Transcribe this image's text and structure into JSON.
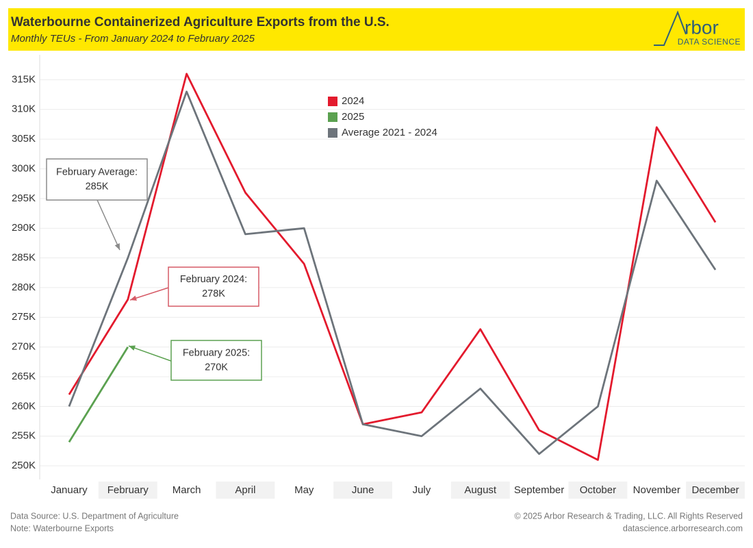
{
  "chart_data": {
    "type": "line",
    "title": "Waterbourne Containerized Agriculture Exports from the U.S.",
    "subtitle": "Monthly TEUs - From January 2024 to February 2025",
    "brand": {
      "name": "rbor",
      "tagline": "DATA SCIENCE"
    },
    "categories": [
      "January",
      "February",
      "March",
      "April",
      "May",
      "June",
      "July",
      "August",
      "September",
      "October",
      "November",
      "December"
    ],
    "series": [
      {
        "name": "2024",
        "color": "#e31a2d",
        "values": [
          262000,
          278000,
          316000,
          296000,
          284000,
          257000,
          259000,
          273000,
          256000,
          251000,
          307000,
          291000
        ]
      },
      {
        "name": "2025",
        "color": "#5ba150",
        "values": [
          254000,
          270000,
          null,
          null,
          null,
          null,
          null,
          null,
          null,
          null,
          null,
          null
        ]
      },
      {
        "name": "Average 2021 - 2024",
        "color": "#6d747b",
        "values": [
          260000,
          285000,
          313000,
          289000,
          290000,
          257000,
          255000,
          263000,
          252000,
          260000,
          298000,
          283000
        ]
      }
    ],
    "ylim": [
      247700,
      319200
    ],
    "yticks": [
      {
        "value": 250000,
        "label": "250K"
      },
      {
        "value": 255000,
        "label": "255K"
      },
      {
        "value": 260000,
        "label": "260K"
      },
      {
        "value": 265000,
        "label": "265K"
      },
      {
        "value": 270000,
        "label": "270K"
      },
      {
        "value": 275000,
        "label": "275K"
      },
      {
        "value": 280000,
        "label": "280K"
      },
      {
        "value": 285000,
        "label": "285K"
      },
      {
        "value": 290000,
        "label": "290K"
      },
      {
        "value": 295000,
        "label": "295K"
      },
      {
        "value": 300000,
        "label": "300K"
      },
      {
        "value": 305000,
        "label": "305K"
      },
      {
        "value": 310000,
        "label": "310K"
      },
      {
        "value": 315000,
        "label": "315K"
      }
    ],
    "grid": true,
    "annotations": [
      {
        "lines": [
          "February Average:",
          "285K"
        ],
        "color": "#8a8a8a"
      },
      {
        "lines": [
          "February 2024:",
          "278K"
        ],
        "color": "#d65a66"
      },
      {
        "lines": [
          "February 2025:",
          "270K"
        ],
        "color": "#5ba150"
      }
    ],
    "footer": {
      "left": [
        "Data Source: U.S. Department of Agriculture",
        "Note: Waterbourne Exports"
      ],
      "right": [
        "© 2025 Arbor Research & Trading, LLC. All Rights Reserved",
        "datascience.arborresearch.com"
      ]
    }
  }
}
